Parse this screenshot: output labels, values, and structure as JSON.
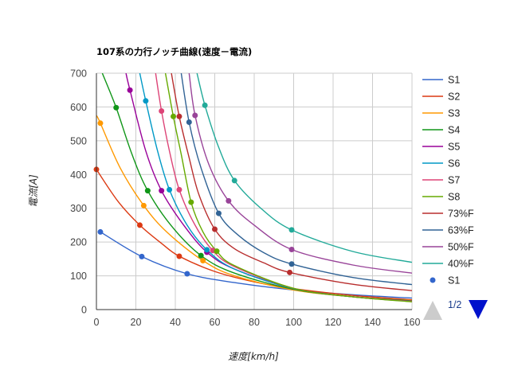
{
  "chart_data": {
    "type": "line",
    "title": "107系の力行ノッチ曲線(速度－電流)",
    "xlabel": "速度[km/h]",
    "ylabel": "電流[A]",
    "xlim": [
      0,
      160
    ],
    "ylim": [
      0,
      700
    ],
    "xticks": [
      "0",
      "20",
      "40",
      "60",
      "80",
      "100",
      "120",
      "140",
      "160"
    ],
    "yticks": [
      "0",
      "100",
      "200",
      "300",
      "400",
      "500",
      "600",
      "700"
    ],
    "grid": true,
    "legend_position": "right",
    "series": [
      {
        "name": "S1",
        "color": "#3366cc",
        "points": [
          [
            2,
            230
          ],
          [
            23,
            157
          ],
          [
            46,
            106
          ],
          [
            70,
            80
          ],
          [
            100,
            58
          ],
          [
            130,
            44
          ],
          [
            160,
            34
          ]
        ]
      },
      {
        "name": "S2",
        "color": "#dc3912",
        "points": [
          [
            0,
            415
          ],
          [
            11,
            320
          ],
          [
            22,
            250
          ],
          [
            33,
            196
          ],
          [
            42,
            158
          ],
          [
            60,
            113
          ],
          [
            80,
            82
          ],
          [
            100,
            62
          ],
          [
            130,
            42
          ],
          [
            160,
            29
          ]
        ]
      },
      {
        "name": "S3",
        "color": "#ff9900",
        "points": [
          [
            0,
            575
          ],
          [
            2,
            552
          ],
          [
            12,
            420
          ],
          [
            24,
            308
          ],
          [
            36,
            228
          ],
          [
            54,
            145
          ],
          [
            70,
            100
          ],
          [
            100,
            58
          ],
          [
            130,
            38
          ],
          [
            160,
            27
          ]
        ]
      },
      {
        "name": "S4",
        "color": "#109618",
        "points": [
          [
            3,
            700
          ],
          [
            10,
            598
          ],
          [
            18,
            460
          ],
          [
            26,
            352
          ],
          [
            38,
            248
          ],
          [
            53,
            160
          ],
          [
            70,
            108
          ],
          [
            100,
            60
          ],
          [
            130,
            38
          ],
          [
            160,
            26
          ]
        ]
      },
      {
        "name": "S5",
        "color": "#990099",
        "points": [
          [
            15,
            700
          ],
          [
            17,
            650
          ],
          [
            25,
            470
          ],
          [
            33,
            352
          ],
          [
            44,
            252
          ],
          [
            56,
            170
          ],
          [
            70,
            120
          ],
          [
            100,
            62
          ],
          [
            130,
            38
          ],
          [
            160,
            25
          ]
        ]
      },
      {
        "name": "S6",
        "color": "#0099c6",
        "points": [
          [
            22,
            700
          ],
          [
            25,
            618
          ],
          [
            31,
            470
          ],
          [
            37,
            355
          ],
          [
            46,
            250
          ],
          [
            56,
            177
          ],
          [
            70,
            120
          ],
          [
            100,
            62
          ],
          [
            130,
            38
          ],
          [
            160,
            24
          ]
        ]
      },
      {
        "name": "S7",
        "color": "#dd4477",
        "points": [
          [
            30,
            700
          ],
          [
            33,
            588
          ],
          [
            37,
            470
          ],
          [
            42,
            355
          ],
          [
            50,
            250
          ],
          [
            59,
            175
          ],
          [
            70,
            127
          ],
          [
            100,
            63
          ],
          [
            130,
            38
          ],
          [
            160,
            24
          ]
        ]
      },
      {
        "name": "S8",
        "color": "#66aa00",
        "points": [
          [
            35,
            700
          ],
          [
            39,
            572
          ],
          [
            43,
            460
          ],
          [
            48,
            318
          ],
          [
            54,
            230
          ],
          [
            61,
            173
          ],
          [
            70,
            130
          ],
          [
            100,
            63
          ],
          [
            130,
            38
          ],
          [
            160,
            23
          ]
        ]
      },
      {
        "name": "73%F",
        "color": "#b82e2e",
        "points": [
          [
            38,
            700
          ],
          [
            42,
            572
          ],
          [
            47,
            450
          ],
          [
            52,
            340
          ],
          [
            60,
            238
          ],
          [
            70,
            180
          ],
          [
            85,
            138
          ],
          [
            98,
            110
          ],
          [
            130,
            75
          ],
          [
            160,
            56
          ]
        ]
      },
      {
        "name": "63%F",
        "color": "#316395",
        "points": [
          [
            43,
            700
          ],
          [
            47,
            555
          ],
          [
            53,
            420
          ],
          [
            62,
            285
          ],
          [
            72,
            220
          ],
          [
            85,
            168
          ],
          [
            99,
            135
          ],
          [
            130,
            95
          ],
          [
            160,
            74
          ]
        ]
      },
      {
        "name": "50%F",
        "color": "#994499",
        "points": [
          [
            47,
            700
          ],
          [
            50,
            575
          ],
          [
            57,
            430
          ],
          [
            67,
            322
          ],
          [
            80,
            250
          ],
          [
            99,
            178
          ],
          [
            130,
            132
          ],
          [
            160,
            108
          ]
        ]
      },
      {
        "name": "40%F",
        "color": "#22aa99",
        "points": [
          [
            51,
            700
          ],
          [
            55,
            605
          ],
          [
            62,
            480
          ],
          [
            70,
            382
          ],
          [
            83,
            302
          ],
          [
            99,
            236
          ],
          [
            130,
            172
          ],
          [
            160,
            140
          ]
        ]
      }
    ],
    "markers": {
      "name": "S1",
      "color": "#3366cc",
      "points": [
        [
          2,
          230
        ],
        [
          23,
          157
        ],
        [
          46,
          106
        ],
        [
          0,
          415
        ],
        [
          22,
          250
        ],
        [
          42,
          158
        ],
        [
          2,
          552
        ],
        [
          24,
          308
        ],
        [
          54,
          145
        ],
        [
          10,
          598
        ],
        [
          26,
          352
        ],
        [
          53,
          160
        ],
        [
          17,
          650
        ],
        [
          33,
          352
        ],
        [
          56,
          170
        ],
        [
          25,
          618
        ],
        [
          37,
          355
        ],
        [
          56,
          177
        ],
        [
          33,
          588
        ],
        [
          42,
          355
        ],
        [
          59,
          175
        ],
        [
          39,
          572
        ],
        [
          48,
          318
        ],
        [
          61,
          173
        ],
        [
          42,
          572
        ],
        [
          60,
          238
        ],
        [
          98,
          110
        ],
        [
          47,
          555
        ],
        [
          62,
          285
        ],
        [
          99,
          135
        ],
        [
          50,
          575
        ],
        [
          67,
          322
        ],
        [
          99,
          178
        ],
        [
          55,
          605
        ],
        [
          70,
          382
        ],
        [
          99,
          236
        ]
      ]
    },
    "marker_colors": [
      "#3366cc",
      "#3366cc",
      "#3366cc",
      "#dc3912",
      "#dc3912",
      "#dc3912",
      "#ff9900",
      "#ff9900",
      "#ff9900",
      "#109618",
      "#109618",
      "#109618",
      "#990099",
      "#990099",
      "#990099",
      "#0099c6",
      "#0099c6",
      "#0099c6",
      "#dd4477",
      "#dd4477",
      "#dd4477",
      "#66aa00",
      "#66aa00",
      "#66aa00",
      "#b82e2e",
      "#b82e2e",
      "#b82e2e",
      "#316395",
      "#316395",
      "#316395",
      "#994499",
      "#994499",
      "#994499",
      "#22aa99",
      "#22aa99",
      "#22aa99"
    ]
  },
  "legend": {
    "entries": [
      "S1",
      "S2",
      "S3",
      "S4",
      "S5",
      "S6",
      "S7",
      "S8",
      "73%F",
      "63%F",
      "50%F",
      "40%F"
    ],
    "marker_entry": "S1"
  },
  "pager": {
    "label": "1/2",
    "prev_color": "#cccccc",
    "next_color": "#0011cc"
  }
}
